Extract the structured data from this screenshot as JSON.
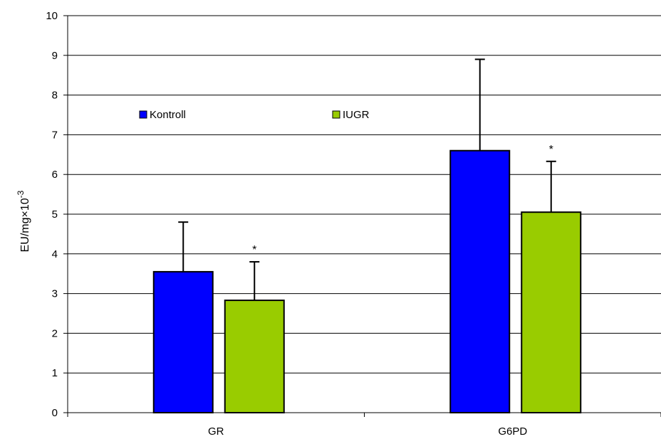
{
  "chart_data": {
    "type": "bar",
    "title": "",
    "xlabel": "",
    "ylabel": "EU/mg×10",
    "ylabel_superscript": "-3",
    "ylim": [
      0,
      10
    ],
    "yticks": [
      0,
      1,
      2,
      3,
      4,
      5,
      6,
      7,
      8,
      9,
      10
    ],
    "ytick_labels": [
      "0",
      "1",
      "2",
      "3",
      "4",
      "5",
      "6",
      "7",
      "8",
      "9",
      "10"
    ],
    "grid": true,
    "legend_position": "upper-left",
    "categories": [
      "GR",
      "G6PD"
    ],
    "series": [
      {
        "name": "Kontroll",
        "color": "#0000ff",
        "values": [
          3.55,
          6.6
        ],
        "error_upper": [
          1.25,
          2.3
        ],
        "significance": [
          "",
          ""
        ]
      },
      {
        "name": "IUGR",
        "color": "#99cc00",
        "values": [
          2.83,
          5.05
        ],
        "error_upper": [
          0.97,
          1.28
        ],
        "significance": [
          "*",
          "*"
        ]
      }
    ]
  }
}
